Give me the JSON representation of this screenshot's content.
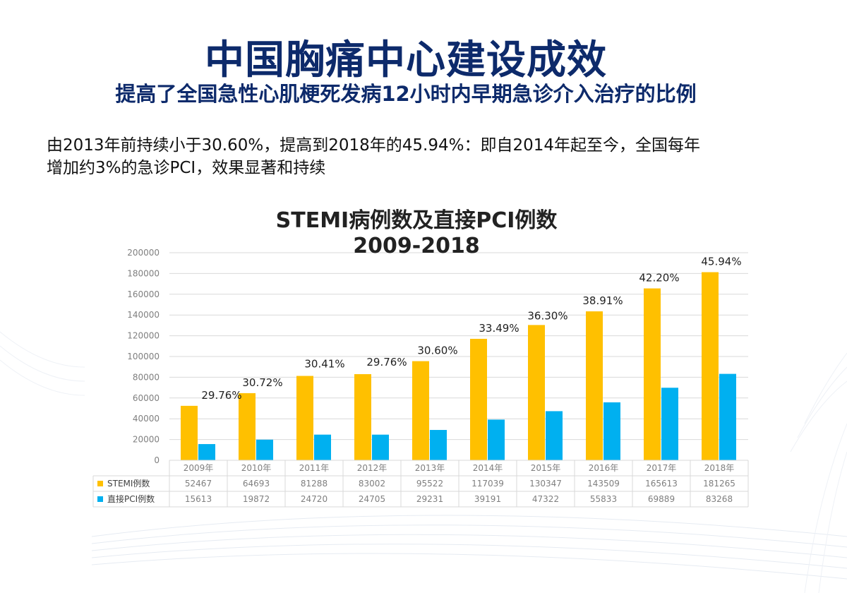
{
  "slide": {
    "title": "中国胸痛中心建设成效",
    "subtitle": "提高了全国急性心肌梗死发病12小时内早期急诊介入治疗的比例",
    "description_line1": "由2013年前持续小于30.60%，提高到2018年的45.94%：即自2014年起至今，全国每年",
    "description_line2": "增加约3%的急诊PCI，效果显著和持续"
  },
  "colors": {
    "title": "#0d2a6b",
    "stemi": "#ffc000",
    "pci": "#00b0f0",
    "grid": "#d9d9d9",
    "axis_text": "#7f7f7f"
  },
  "chart_data": {
    "type": "bar",
    "title_line1": "STEMI病例数及直接PCI例数",
    "title_line2": "2009-2018",
    "categories": [
      "2009年",
      "2010年",
      "2011年",
      "2012年",
      "2013年",
      "2014年",
      "2015年",
      "2016年",
      "2017年",
      "2018年"
    ],
    "series": [
      {
        "name": "STEMI例数",
        "values": [
          52467,
          64693,
          81288,
          83002,
          95522,
          117039,
          130347,
          143509,
          165613,
          181265
        ]
      },
      {
        "name": "直接PCI例数",
        "values": [
          15613,
          19872,
          24720,
          24705,
          29231,
          39191,
          47322,
          55833,
          69889,
          83268
        ]
      }
    ],
    "annotations": [
      "29.76%",
      "30.72%",
      "30.41%",
      "29.76%",
      "30.60%",
      "33.49%",
      "36.30%",
      "38.91%",
      "42.20%",
      "45.94%"
    ],
    "ylim": [
      0,
      200000
    ],
    "yticks": [
      0,
      20000,
      40000,
      60000,
      80000,
      100000,
      120000,
      140000,
      160000,
      180000,
      200000
    ],
    "grid": true,
    "legend": "data-table"
  }
}
